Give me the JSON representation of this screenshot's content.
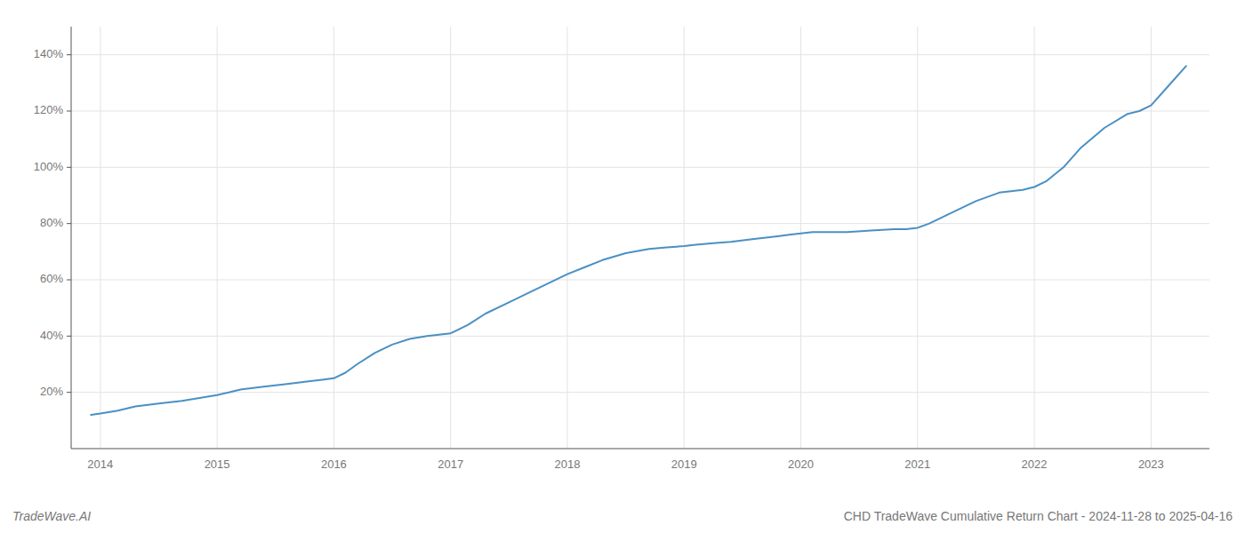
{
  "chart_data": {
    "type": "line",
    "title": "CHD TradeWave Cumulative Return Chart - 2024-11-28 to 2025-04-16",
    "annotations": [
      "TradeWave.AI"
    ],
    "color": "#4a90c4",
    "grid": true,
    "x": [
      2013.92,
      2014.0,
      2014.15,
      2014.3,
      2014.5,
      2014.7,
      2014.85,
      2015.0,
      2015.1,
      2015.2,
      2015.4,
      2015.6,
      2015.8,
      2015.9,
      2016.0,
      2016.1,
      2016.2,
      2016.35,
      2016.5,
      2016.65,
      2016.8,
      2016.9,
      2017.0,
      2017.15,
      2017.3,
      2017.5,
      2017.7,
      2017.85,
      2018.0,
      2018.15,
      2018.3,
      2018.5,
      2018.7,
      2018.85,
      2019.0,
      2019.1,
      2019.25,
      2019.4,
      2019.6,
      2019.8,
      2019.9,
      2020.0,
      2020.1,
      2020.25,
      2020.4,
      2020.6,
      2020.8,
      2020.9,
      2021.0,
      2021.1,
      2021.25,
      2021.5,
      2021.7,
      2021.9,
      2022.0,
      2022.1,
      2022.25,
      2022.4,
      2022.6,
      2022.8,
      2022.9,
      2023.0,
      2023.15,
      2023.3
    ],
    "values": [
      12,
      12.5,
      13.5,
      15,
      16,
      17,
      18,
      19,
      20,
      21,
      22,
      23,
      24,
      24.5,
      25,
      27,
      30,
      34,
      37,
      39,
      40,
      40.5,
      41,
      44,
      48,
      52,
      56,
      59,
      62,
      64.5,
      67,
      69.5,
      71,
      71.5,
      72,
      72.5,
      73,
      73.5,
      74.5,
      75.5,
      76,
      76.5,
      77,
      77,
      77,
      77.5,
      78,
      78,
      78.5,
      80,
      83,
      88,
      91,
      92,
      93,
      95,
      100,
      107,
      114,
      119,
      120,
      122,
      129,
      136
    ],
    "xlim": [
      2013.75,
      2023.5
    ],
    "xticks": [
      2014,
      2015,
      2016,
      2017,
      2018,
      2019,
      2020,
      2021,
      2022,
      2023
    ],
    "ylim": [
      0,
      150
    ],
    "yticks": [
      {
        "value": 20,
        "label": "20%"
      },
      {
        "value": 40,
        "label": "40%"
      },
      {
        "value": 60,
        "label": "60%"
      },
      {
        "value": 80,
        "label": "80%"
      },
      {
        "value": 100,
        "label": "100%"
      },
      {
        "value": 120,
        "label": "120%"
      },
      {
        "value": 140,
        "label": "140%"
      }
    ]
  }
}
